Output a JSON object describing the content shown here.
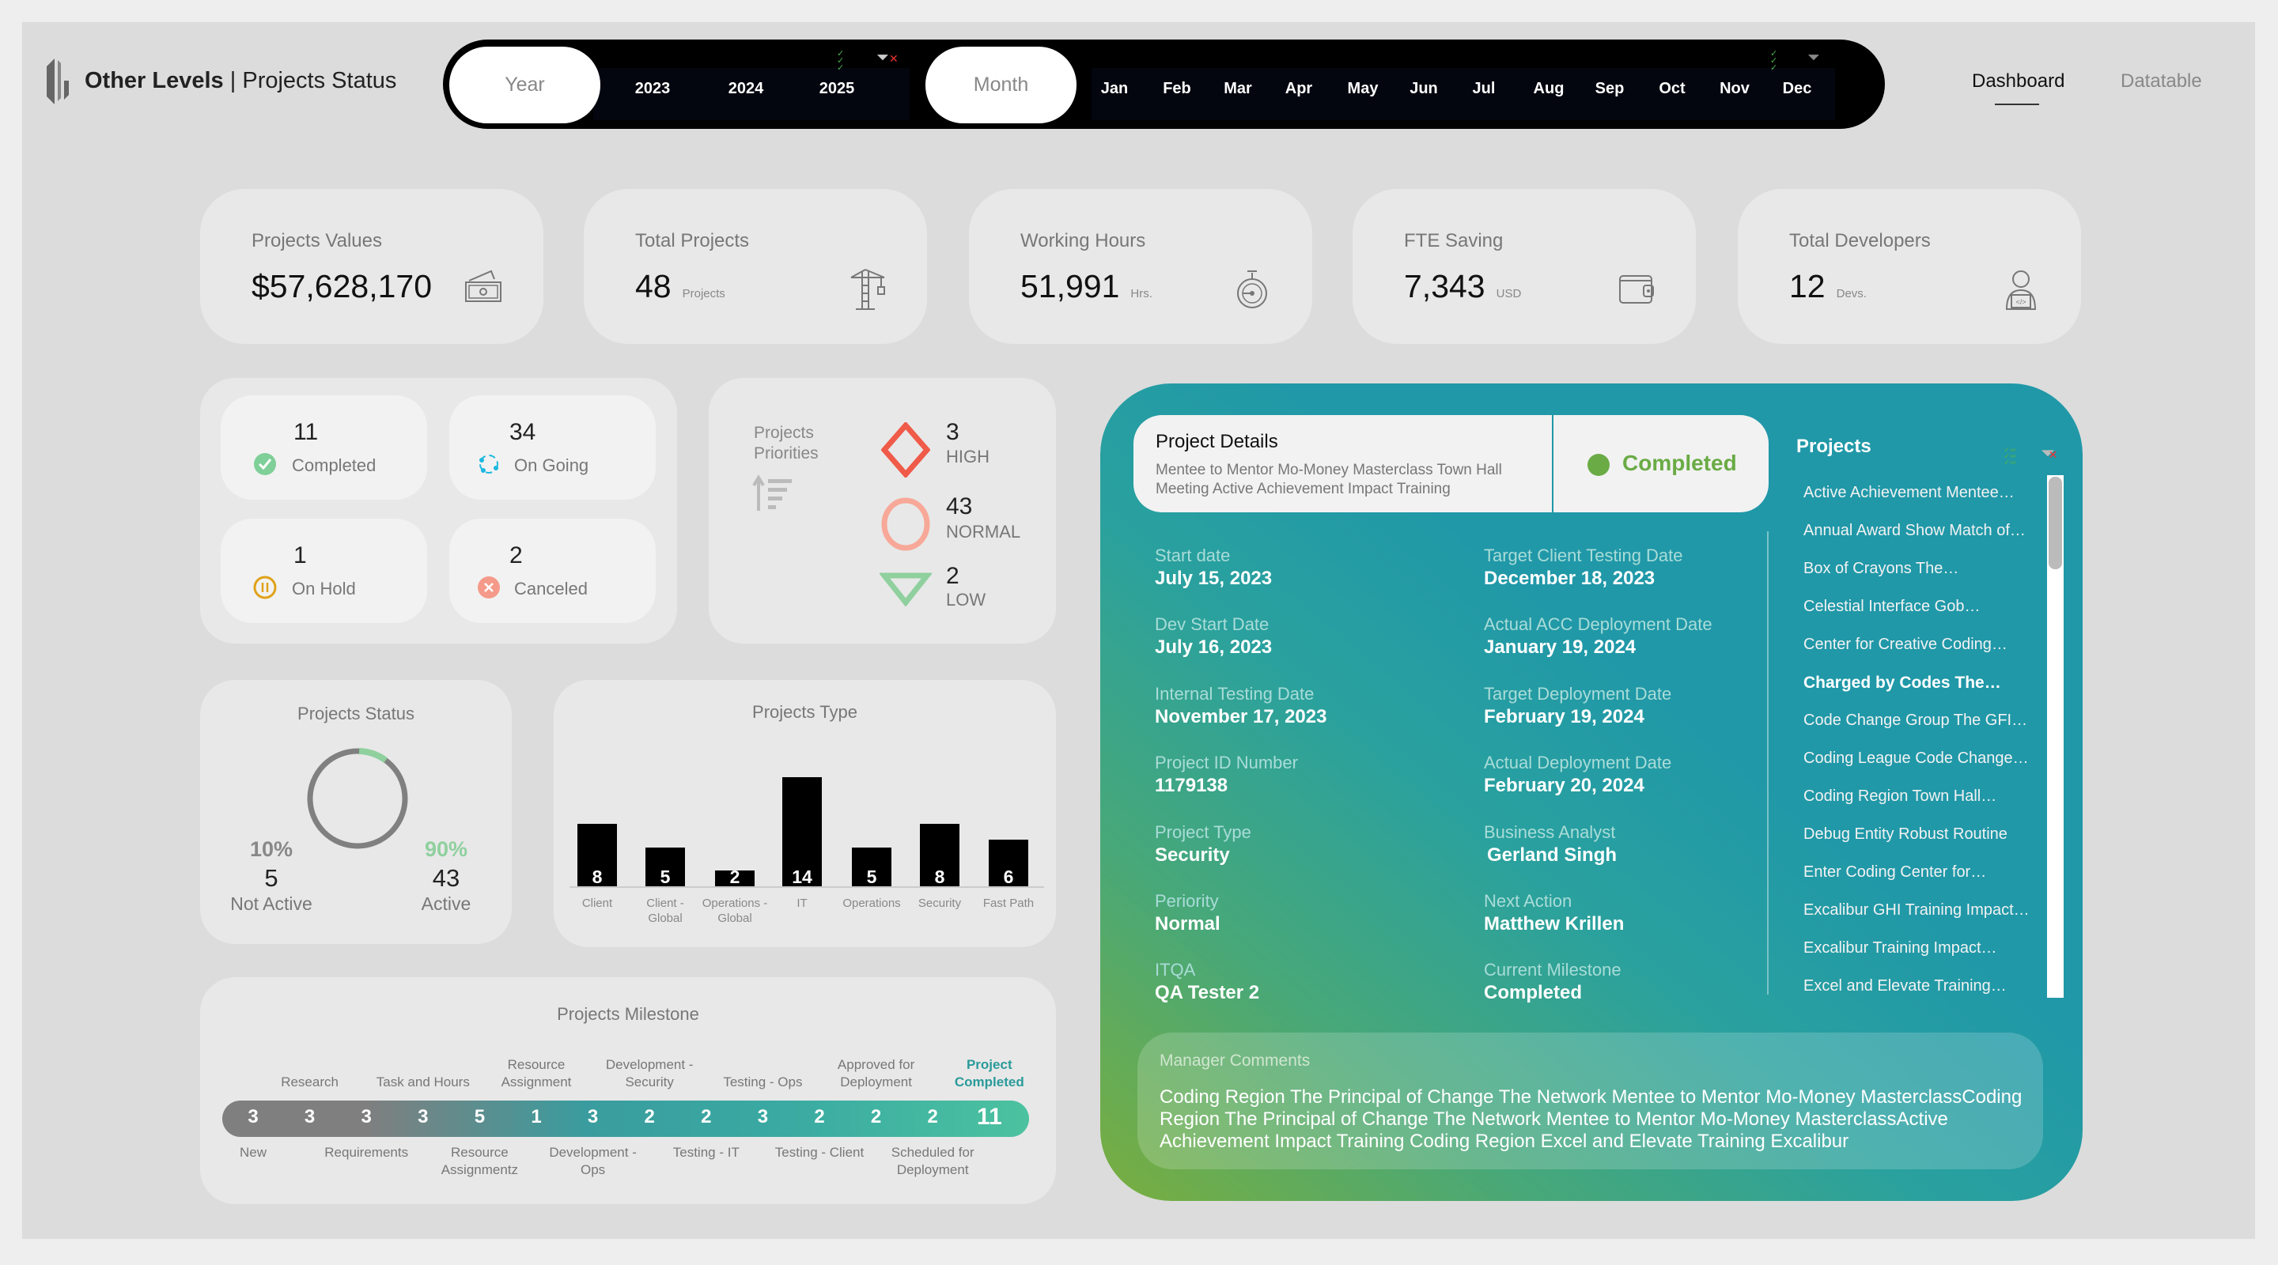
{
  "header": {
    "brand": "Other Levels",
    "separator": "|",
    "title": "Projects Status"
  },
  "filter_bar": {
    "year_label": "Year",
    "years": [
      "2023",
      "2024",
      "2025"
    ],
    "month_label": "Month",
    "months": [
      "Jan",
      "Feb",
      "Mar",
      "Apr",
      "May",
      "Jun",
      "Jul",
      "Aug",
      "Sep",
      "Oct",
      "Nov",
      "Dec"
    ]
  },
  "nav": {
    "tabs": [
      {
        "label": "Dashboard",
        "active": true
      },
      {
        "label": "Datatable",
        "active": false
      }
    ]
  },
  "kpis": [
    {
      "title": "Projects Values",
      "value": "$57,628,170",
      "unit": "",
      "icon": "money-icon"
    },
    {
      "title": "Total Projects",
      "value": "48",
      "unit": "Projects",
      "icon": "crane-icon"
    },
    {
      "title": "Working Hours",
      "value": "51,991",
      "unit": "Hrs.",
      "icon": "stopwatch-icon"
    },
    {
      "title": "FTE Saving",
      "value": "7,343",
      "unit": "USD",
      "icon": "wallet-icon"
    },
    {
      "title": "Total Developers",
      "value": "12",
      "unit": "Devs.",
      "icon": "developer-icon"
    }
  ],
  "status_counts": [
    {
      "count": "11",
      "label": "Completed",
      "icon": "check-circle-icon",
      "color": "#7fcf98"
    },
    {
      "count": "34",
      "label": "On Going",
      "icon": "refresh-icon",
      "color": "#1bb8e0"
    },
    {
      "count": "1",
      "label": "On Hold",
      "icon": "pause-circle-icon",
      "color": "#e0a21a"
    },
    {
      "count": "2",
      "label": "Canceled",
      "icon": "cancel-circle-icon",
      "color": "#f59a8a"
    }
  ],
  "priorities": {
    "title": "Projects Priorities",
    "items": [
      {
        "count": "3",
        "label": "HIGH",
        "color": "#f05a48"
      },
      {
        "count": "43",
        "label": "NORMAL",
        "color": "#f8a898"
      },
      {
        "count": "2",
        "label": "LOW",
        "color": "#8fd09e"
      }
    ]
  },
  "projects_status": {
    "title": "Projects Status",
    "not_active": {
      "pct": "10%",
      "count": "5",
      "label": "Not Active"
    },
    "active": {
      "pct": "90%",
      "count": "43",
      "label": "Active"
    }
  },
  "chart_data": [
    {
      "type": "bar",
      "title": "Projects Type",
      "categories": [
        "Client",
        "Client - Global",
        "Operations - Global",
        "IT",
        "Operations",
        "Security",
        "Fast Path"
      ],
      "values": [
        8,
        5,
        2,
        14,
        5,
        8,
        6
      ],
      "color": "#000000"
    },
    {
      "type": "bar",
      "title": "Projects Milestone",
      "categories": [
        "New",
        "Research",
        "Requirements",
        "Task and Hours",
        "Resource Assignmentz",
        "Resource Assignment",
        "Development - Ops",
        "Development - Security",
        "Testing - IT",
        "Testing - Ops",
        "Testing - Client",
        "Approved for Deployment",
        "Scheduled for Deployment",
        "Project Completed"
      ],
      "values": [
        3,
        3,
        3,
        3,
        5,
        1,
        3,
        2,
        2,
        3,
        2,
        2,
        2,
        11
      ]
    }
  ],
  "project_details": {
    "title": "Project Details",
    "name": "Mentee to Mentor Mo-Money Masterclass Town Hall Meeting Active Achievement Impact Training",
    "status": "Completed",
    "status_color": "#6aab45",
    "fields_left": [
      {
        "label": "Start date",
        "value": "July 15, 2023"
      },
      {
        "label": "Dev Start Date",
        "value": "July 16, 2023"
      },
      {
        "label": "Internal Testing Date",
        "value": "November 17, 2023"
      },
      {
        "label": "Project ID Number",
        "value": "1179138"
      },
      {
        "label": "Project Type",
        "value": "Security"
      },
      {
        "label": "Periority",
        "value": "Normal"
      },
      {
        "label": "ITQA",
        "value": "QA Tester 2"
      }
    ],
    "fields_right": [
      {
        "label": "Target Client Testing Date",
        "value": "December 18, 2023"
      },
      {
        "label": "Actual ACC Deployment Date",
        "value": "January 19, 2024"
      },
      {
        "label": "Target Deployment Date",
        "value": "February 19, 2024"
      },
      {
        "label": "Actual Deployment Date",
        "value": "February 20, 2024"
      },
      {
        "label": "Business Analyst",
        "value": "Gerland Singh"
      },
      {
        "label": "Next Action",
        "value": "Matthew Krillen"
      },
      {
        "label": "Current Milestone",
        "value": "Completed"
      }
    ],
    "manager_comments_label": "Manager Comments",
    "manager_comments": "Coding Region The Principal of Change The Network Mentee to Mentor Mo-Money MasterclassCoding Region The Principal of Change The Network Mentee to Mentor Mo-Money MasterclassActive Achievement Impact Training Coding Region Excel and Elevate Training Excalibur"
  },
  "projects_list": {
    "title": "Projects",
    "selected": "Charged by Codes The…",
    "items": [
      "Active Achievement Mentee…",
      "Annual Award Show Match of…",
      "Box of Crayons The…",
      "Celestial Interface Gob…",
      "Center for Creative Coding…",
      "Charged by Codes The…",
      "Code Change Group The GFI…",
      "Coding League Code Change…",
      "Coding Region Town Hall…",
      "Debug Entity Robust Routine",
      "Enter Coding Center for…",
      "Excalibur GHI Training Impact…",
      "Excalibur Training Impact…",
      "Excel and Elevate Training…"
    ]
  },
  "colors": {
    "teal": "#2098a8",
    "green": "#78ae3e",
    "panel": "#e8e8e8"
  }
}
